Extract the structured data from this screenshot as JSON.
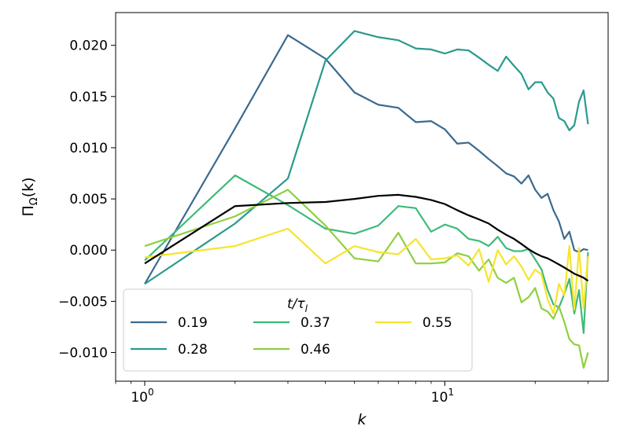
{
  "chart_data": {
    "type": "line",
    "xscale": "log",
    "xlabel": "k",
    "ylabel": "Π_Ω(k)",
    "xlim": [
      0.8,
      35
    ],
    "ylim": [
      -0.0128,
      0.0232
    ],
    "x_ticks": [
      {
        "value": 1,
        "base": "10",
        "exp": "0"
      },
      {
        "value": 10,
        "base": "10",
        "exp": "1"
      }
    ],
    "y_ticks": [
      {
        "value": 0.02,
        "label": "0.020"
      },
      {
        "value": 0.015,
        "label": "0.015"
      },
      {
        "value": 0.01,
        "label": "0.010"
      },
      {
        "value": 0.005,
        "label": "0.005"
      },
      {
        "value": 0.0,
        "label": "0.000"
      },
      {
        "value": -0.005,
        "label": "−0.005"
      },
      {
        "value": -0.01,
        "label": "−0.010"
      }
    ],
    "x": [
      1,
      2,
      3,
      4,
      5,
      6,
      7,
      8,
      9,
      10,
      11,
      12,
      13,
      14,
      15,
      16,
      17,
      18,
      19,
      20,
      21,
      22,
      23,
      24,
      25,
      26,
      27,
      28,
      29,
      30
    ],
    "legend": {
      "title_main": "t/τ",
      "title_sub": "l",
      "placement": "lower-left",
      "columns": 3
    },
    "series": [
      {
        "name": "0.19",
        "color": "#3b6a8f",
        "values": [
          -0.0033,
          0.0119,
          0.021,
          0.0187,
          0.0154,
          0.0142,
          0.0139,
          0.0125,
          0.0126,
          0.0118,
          0.0104,
          0.0105,
          0.0097,
          0.0089,
          0.0082,
          0.0075,
          0.0072,
          0.0065,
          0.0073,
          0.0059,
          0.0051,
          0.0055,
          0.0039,
          0.0028,
          0.0011,
          0.0018,
          0.0,
          -0.0002,
          0.0001,
          0.0
        ]
      },
      {
        "name": "0.28",
        "color": "#2a9a8e",
        "values": [
          -0.0033,
          0.0026,
          0.007,
          0.0185,
          0.0214,
          0.0208,
          0.0205,
          0.0197,
          0.0196,
          0.0192,
          0.0196,
          0.0195,
          0.0188,
          0.0181,
          0.0175,
          0.0189,
          0.018,
          0.0172,
          0.0157,
          0.0164,
          0.0164,
          0.0154,
          0.0148,
          0.0129,
          0.0126,
          0.0117,
          0.0122,
          0.0145,
          0.0156,
          0.0123
        ]
      },
      {
        "name": "0.37",
        "color": "#3dba78",
        "values": [
          -0.001,
          0.0073,
          0.0044,
          0.0021,
          0.0016,
          0.0024,
          0.0043,
          0.0041,
          0.0018,
          0.0025,
          0.0021,
          0.0011,
          0.0009,
          0.0004,
          0.0013,
          0.0002,
          -0.0001,
          -0.0001,
          0.0001,
          -0.0009,
          -0.0019,
          -0.0039,
          -0.0053,
          -0.0056,
          -0.0043,
          -0.0028,
          -0.0062,
          -0.0039,
          -0.0081,
          -0.0002
        ]
      },
      {
        "name": "0.46",
        "color": "#8fcf40",
        "values": [
          0.0004,
          0.0033,
          0.0059,
          0.0024,
          -0.0008,
          -0.0011,
          0.0017,
          -0.0013,
          -0.0013,
          -0.0012,
          -0.0003,
          -0.0006,
          -0.002,
          -0.0009,
          -0.0027,
          -0.0032,
          -0.0027,
          -0.0051,
          -0.0046,
          -0.0037,
          -0.0057,
          -0.006,
          -0.0067,
          -0.0055,
          -0.007,
          -0.0087,
          -0.0092,
          -0.0093,
          -0.0115,
          -0.01
        ]
      },
      {
        "name": "0.55",
        "color": "#f5e52c",
        "values": [
          -0.0007,
          0.0004,
          0.0021,
          -0.0013,
          0.0004,
          -0.0002,
          -0.0004,
          0.0011,
          -0.0009,
          -0.0008,
          -0.0005,
          -0.0015,
          0.0001,
          -0.0031,
          0.0,
          -0.0014,
          -0.0006,
          -0.0016,
          -0.0029,
          -0.0019,
          -0.0024,
          -0.0048,
          -0.0062,
          -0.0033,
          -0.0044,
          0.0004,
          -0.0058,
          0.0002,
          -0.0057,
          -0.0006
        ]
      },
      {
        "name": "",
        "color": "#000000",
        "values": [
          -0.0013,
          0.0043,
          0.0046,
          0.0047,
          0.005,
          0.0053,
          0.0054,
          0.0052,
          0.0049,
          0.0045,
          0.0039,
          0.0034,
          0.003,
          0.0026,
          0.002,
          0.0015,
          0.0011,
          0.0006,
          0.0001,
          -0.0003,
          -0.0006,
          -0.0008,
          -0.0011,
          -0.0014,
          -0.0017,
          -0.002,
          -0.0023,
          -0.0025,
          -0.0027,
          -0.003
        ]
      }
    ]
  }
}
